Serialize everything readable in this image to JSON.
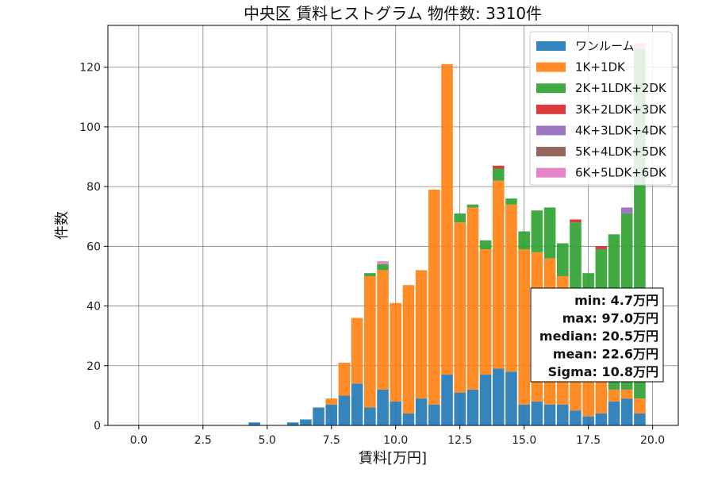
{
  "chart_data": {
    "type": "bar",
    "title": "中央区 賃料ヒストグラム  物件数: 3310件",
    "xlabel": "賃料[万円]",
    "ylabel": "件数",
    "xlim": [
      -1.2,
      21
    ],
    "ylim": [
      0,
      134
    ],
    "xticks": [
      "0.0",
      "2.5",
      "5.0",
      "7.5",
      "10.0",
      "12.5",
      "15.0",
      "17.5",
      "20.0"
    ],
    "xtick_values": [
      0,
      2.5,
      5,
      7.5,
      10,
      12.5,
      15,
      17.5,
      20
    ],
    "yticks": [
      "0",
      "20",
      "40",
      "60",
      "80",
      "100",
      "120"
    ],
    "ytick_values": [
      0,
      20,
      40,
      60,
      80,
      100,
      120
    ],
    "grid": true,
    "legend_position": "top-right",
    "bin_width": 0.5,
    "x": [
      4.5,
      5.0,
      5.5,
      6.0,
      6.5,
      7.0,
      7.5,
      8.0,
      8.5,
      9.0,
      9.5,
      10.0,
      10.5,
      11.0,
      11.5,
      12.0,
      12.5,
      13.0,
      13.5,
      14.0,
      14.5,
      15.0,
      15.5,
      16.0,
      16.5,
      17.0,
      17.5,
      18.0,
      18.5,
      19.0,
      19.5
    ],
    "series": [
      {
        "name": "ワンルーム",
        "color": "#1f77b4",
        "values": [
          1,
          0,
          0,
          1,
          2,
          6,
          7,
          10,
          14,
          6,
          12,
          8,
          4,
          9,
          7,
          17,
          11,
          12,
          17,
          19,
          18,
          7,
          8,
          7,
          7,
          5,
          3,
          4,
          8,
          9,
          4
        ]
      },
      {
        "name": "1K+1DK",
        "color": "#ff7f0e",
        "values": [
          0,
          0,
          0,
          0,
          0,
          0,
          2,
          11,
          22,
          44,
          40,
          33,
          43,
          43,
          72,
          104,
          57,
          61,
          42,
          63,
          56,
          52,
          50,
          49,
          43,
          41,
          38,
          36,
          4,
          3,
          5
        ]
      },
      {
        "name": "2K+1LDK+2DK",
        "color": "#2ca02c",
        "values": [
          0,
          0,
          0,
          0,
          0,
          0,
          0,
          0,
          0,
          1,
          2,
          0,
          0,
          0,
          0,
          0,
          3,
          1,
          3,
          4,
          2,
          6,
          14,
          17,
          11,
          22,
          10,
          19,
          52,
          59,
          117
        ]
      },
      {
        "name": "3K+2LDK+3DK",
        "color": "#d62728",
        "values": [
          0,
          0,
          0,
          0,
          0,
          0,
          0,
          0,
          0,
          0,
          0,
          0,
          0,
          0,
          0,
          0,
          0,
          0,
          0,
          1,
          0,
          0,
          0,
          0,
          0,
          1,
          0,
          1,
          0,
          0,
          0
        ]
      },
      {
        "name": "4K+3LDK+4DK",
        "color": "#9467bd",
        "values": [
          0,
          0,
          0,
          0,
          0,
          0,
          0,
          0,
          0,
          0,
          0,
          0,
          0,
          0,
          0,
          0,
          0,
          0,
          0,
          0,
          0,
          0,
          0,
          0,
          0,
          0,
          0,
          0,
          0,
          2,
          0
        ]
      },
      {
        "name": "5K+4LDK+5DK",
        "color": "#8c564b",
        "values": [
          0,
          0,
          0,
          0,
          0,
          0,
          0,
          0,
          0,
          0,
          0,
          0,
          0,
          0,
          0,
          0,
          0,
          0,
          0,
          0,
          0,
          0,
          0,
          0,
          0,
          0,
          0,
          0,
          0,
          0,
          0
        ]
      },
      {
        "name": "6K+5LDK+6DK",
        "color": "#e377c2",
        "values": [
          0,
          0,
          0,
          0,
          0,
          0,
          0,
          0,
          0,
          0,
          1,
          0,
          0,
          0,
          0,
          0,
          0,
          0,
          0,
          0,
          0,
          0,
          0,
          0,
          0,
          0,
          0,
          0,
          0,
          0,
          2
        ]
      }
    ],
    "stats": [
      "min: 4.7万円",
      "max: 97.0万円",
      "median: 20.5万円",
      "mean: 22.6万円",
      "Sigma: 10.8万円"
    ]
  }
}
